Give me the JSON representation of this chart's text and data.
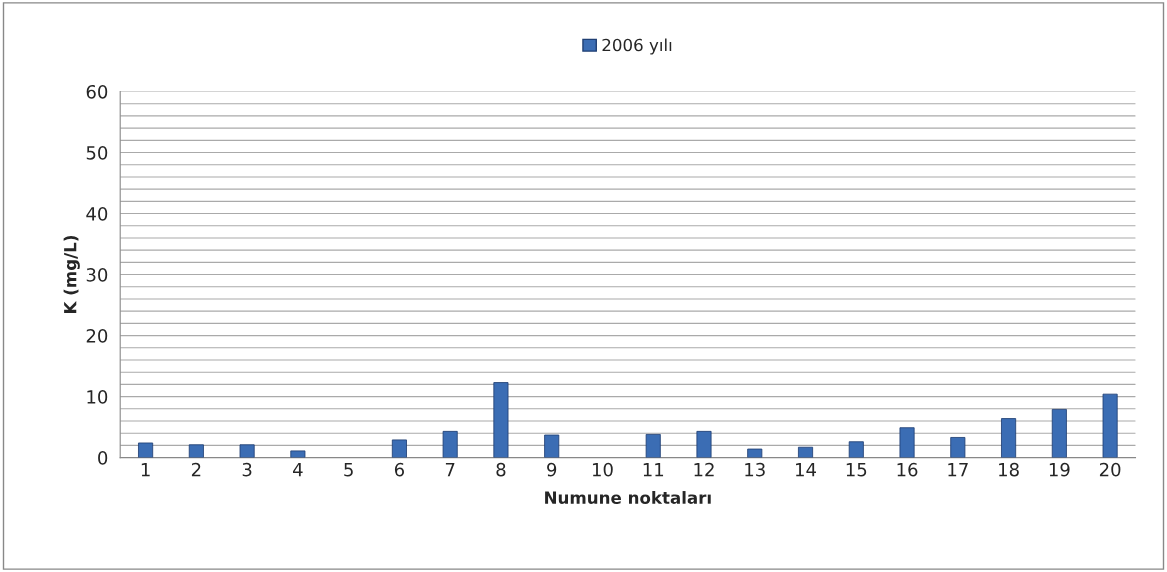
{
  "chart_data": {
    "type": "bar",
    "xlabel": "Numune noktaları",
    "ylabel": "K (mg/L)",
    "categories": [
      "1",
      "2",
      "3",
      "4",
      "5",
      "6",
      "7",
      "8",
      "9",
      "10",
      "11",
      "12",
      "13",
      "14",
      "15",
      "16",
      "17",
      "18",
      "19",
      "20"
    ],
    "series": [
      {
        "name": "2006 yılı",
        "color": "#3b6db4",
        "values": [
          2.4,
          2.1,
          2.1,
          1.1,
          null,
          2.9,
          4.3,
          12.3,
          3.7,
          null,
          3.8,
          4.3,
          1.4,
          1.7,
          2.6,
          4.9,
          3.3,
          6.4,
          7.9,
          10.4
        ]
      }
    ],
    "ylim": [
      0,
      60
    ],
    "yticks": [
      0,
      {
        "value": 2,
        "label": null
      },
      {
        "value": 4,
        "label": null
      },
      {
        "value": 6,
        "label": null
      },
      {
        "value": 8,
        "label": null
      },
      10,
      {
        "value": 12,
        "label": null
      },
      {
        "value": 14,
        "label": null
      },
      {
        "value": 16,
        "label": null
      },
      {
        "value": 18,
        "label": null
      },
      20,
      {
        "value": 22,
        "label": null
      },
      {
        "value": 24,
        "label": null
      },
      {
        "value": 26,
        "label": null
      },
      {
        "value": 28,
        "label": null
      },
      30,
      {
        "value": 32,
        "label": null
      },
      {
        "value": 34,
        "label": null
      },
      {
        "value": 36,
        "label": null
      },
      {
        "value": 38,
        "label": null
      },
      40,
      {
        "value": 42,
        "label": null
      },
      {
        "value": 44,
        "label": null
      },
      {
        "value": 46,
        "label": null
      },
      {
        "value": 48,
        "label": null
      },
      50,
      {
        "value": 52,
        "label": null
      },
      {
        "value": 54,
        "label": null
      },
      {
        "value": 56,
        "label": null
      },
      {
        "value": 58,
        "label": null
      },
      60
    ],
    "grid": "y",
    "legend": "top"
  }
}
